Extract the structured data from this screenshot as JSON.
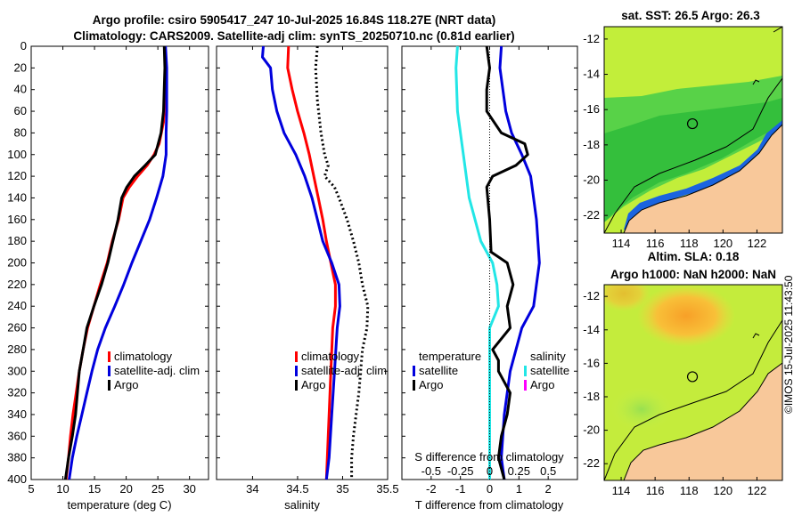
{
  "header": {
    "line1": "Argo profile: csiro 5905417_247 10-Jul-2025 16.84S 118.27E (NRT data)",
    "line2": "Climatology: CARS2009. Satellite-adj clim: synTS_20250710.nc (0.81d earlier)"
  },
  "colors": {
    "climatology": "#ff0000",
    "satellite": "#0000dd",
    "argo": "#000000",
    "satellite_salinity": "#22e6e6",
    "argo_salinity": "#ff00ff"
  },
  "chart_data": [
    {
      "type": "line",
      "panel": "temperature",
      "xlabel": "temperature (deg C)",
      "ylabel": "depth",
      "xlim": [
        5,
        33
      ],
      "ylim": [
        400,
        0
      ],
      "xticks": [
        5,
        10,
        15,
        20,
        25,
        30
      ],
      "yticks": [
        0,
        20,
        40,
        60,
        80,
        100,
        120,
        140,
        160,
        180,
        200,
        220,
        240,
        260,
        280,
        300,
        320,
        340,
        360,
        380,
        400
      ],
      "legend": [
        "climatology",
        "satellite-adj. clim",
        "Argo"
      ],
      "series": [
        {
          "name": "climatology",
          "style": "solid",
          "points": [
            [
              26.1,
              0
            ],
            [
              26.2,
              20
            ],
            [
              26.1,
              50
            ],
            [
              25.9,
              70
            ],
            [
              25.2,
              90
            ],
            [
              24.4,
              100
            ],
            [
              23.3,
              110
            ],
            [
              21.8,
              120
            ],
            [
              20.5,
              130
            ],
            [
              19.5,
              140
            ],
            [
              18.8,
              160
            ],
            [
              17.8,
              180
            ],
            [
              17.0,
              200
            ],
            [
              15.9,
              220
            ],
            [
              14.9,
              240
            ],
            [
              13.9,
              260
            ],
            [
              13.2,
              280
            ],
            [
              12.6,
              300
            ],
            [
              12.1,
              320
            ],
            [
              11.6,
              340
            ],
            [
              11.2,
              360
            ],
            [
              10.9,
              380
            ],
            [
              10.5,
              400
            ]
          ]
        },
        {
          "name": "satellite-adj. clim",
          "style": "solid",
          "points": [
            [
              26.2,
              0
            ],
            [
              26.4,
              20
            ],
            [
              26.4,
              60
            ],
            [
              26.3,
              80
            ],
            [
              26.3,
              100
            ],
            [
              25.8,
              120
            ],
            [
              24.8,
              140
            ],
            [
              23.7,
              160
            ],
            [
              22.3,
              180
            ],
            [
              20.9,
              200
            ],
            [
              19.6,
              220
            ],
            [
              18.2,
              240
            ],
            [
              16.7,
              260
            ],
            [
              15.5,
              280
            ],
            [
              14.6,
              300
            ],
            [
              13.8,
              320
            ],
            [
              13.0,
              340
            ],
            [
              12.2,
              360
            ],
            [
              11.5,
              380
            ],
            [
              11.0,
              400
            ]
          ]
        },
        {
          "name": "Argo",
          "style": "solid",
          "points": [
            [
              26.0,
              0
            ],
            [
              26.1,
              20
            ],
            [
              25.9,
              60
            ],
            [
              25.5,
              80
            ],
            [
              24.6,
              100
            ],
            [
              23.0,
              110
            ],
            [
              21.3,
              120
            ],
            [
              20.1,
              130
            ],
            [
              19.3,
              140
            ],
            [
              18.7,
              160
            ],
            [
              17.9,
              180
            ],
            [
              17.1,
              200
            ],
            [
              16.1,
              220
            ],
            [
              14.9,
              240
            ],
            [
              13.8,
              260
            ],
            [
              13.2,
              280
            ],
            [
              12.6,
              300
            ],
            [
              12.3,
              320
            ],
            [
              12.0,
              340
            ],
            [
              11.5,
              360
            ],
            [
              10.9,
              380
            ],
            [
              10.4,
              400
            ]
          ]
        }
      ]
    },
    {
      "type": "line",
      "panel": "salinity",
      "xlabel": "salinity",
      "xlim": [
        33.6,
        35.5
      ],
      "ylim": [
        400,
        0
      ],
      "xticks": [
        34,
        34.5,
        35,
        35.5
      ],
      "xticklabels": [
        "34",
        "34.5",
        "35",
        "35.5"
      ],
      "legend": [
        "climatology",
        "satellite-adj. clim",
        "Argo"
      ],
      "series": [
        {
          "name": "climatology",
          "style": "solid",
          "points": [
            [
              34.4,
              0
            ],
            [
              34.39,
              20
            ],
            [
              34.44,
              40
            ],
            [
              34.5,
              60
            ],
            [
              34.57,
              80
            ],
            [
              34.63,
              100
            ],
            [
              34.68,
              120
            ],
            [
              34.73,
              140
            ],
            [
              34.78,
              160
            ],
            [
              34.82,
              180
            ],
            [
              34.87,
              200
            ],
            [
              34.92,
              220
            ],
            [
              34.92,
              240
            ],
            [
              34.89,
              260
            ],
            [
              34.87,
              300
            ],
            [
              34.85,
              340
            ],
            [
              34.83,
              380
            ],
            [
              34.82,
              400
            ]
          ]
        },
        {
          "name": "satellite-adj. clim",
          "style": "solid",
          "points": [
            [
              34.12,
              0
            ],
            [
              34.11,
              10
            ],
            [
              34.2,
              20
            ],
            [
              34.22,
              40
            ],
            [
              34.27,
              60
            ],
            [
              34.35,
              80
            ],
            [
              34.48,
              100
            ],
            [
              34.58,
              120
            ],
            [
              34.66,
              140
            ],
            [
              34.72,
              160
            ],
            [
              34.78,
              180
            ],
            [
              34.88,
              200
            ],
            [
              34.96,
              220
            ],
            [
              34.97,
              240
            ],
            [
              34.94,
              260
            ],
            [
              34.91,
              300
            ],
            [
              34.88,
              340
            ],
            [
              34.85,
              380
            ],
            [
              34.82,
              400
            ]
          ]
        },
        {
          "name": "Argo",
          "style": "dotted",
          "points": [
            [
              34.72,
              0
            ],
            [
              34.7,
              20
            ],
            [
              34.72,
              50
            ],
            [
              34.76,
              80
            ],
            [
              34.8,
              100
            ],
            [
              34.84,
              110
            ],
            [
              34.8,
              120
            ],
            [
              34.91,
              130
            ],
            [
              34.96,
              140
            ],
            [
              35.05,
              160
            ],
            [
              35.12,
              180
            ],
            [
              35.18,
              200
            ],
            [
              35.22,
              220
            ],
            [
              35.28,
              240
            ],
            [
              35.27,
              260
            ],
            [
              35.22,
              280
            ],
            [
              35.2,
              300
            ],
            [
              35.18,
              320
            ],
            [
              35.15,
              340
            ],
            [
              35.12,
              360
            ],
            [
              35.1,
              380
            ],
            [
              35.1,
              400
            ]
          ]
        }
      ]
    },
    {
      "type": "line",
      "panel": "difference",
      "xlabel": "T difference from climatology",
      "xlabel_secondary": "S difference from climatology",
      "xlim": [
        -3,
        3
      ],
      "ylim": [
        400,
        0
      ],
      "xticks": [
        -2,
        -1,
        0,
        1,
        2
      ],
      "xticklabels": [
        "-2",
        "-1",
        "0",
        "1",
        "2"
      ],
      "secondary_ticklabels": [
        "-0.5",
        "-0.25",
        "0",
        "0.25",
        "0.5"
      ],
      "legend_temperature_title": "temperature",
      "legend_salinity_title": "salinity",
      "legend_temperature": [
        "satellite",
        "Argo"
      ],
      "legend_salinity": [
        "satellite",
        "Argo"
      ],
      "series": [
        {
          "name": "satellite (temperature)",
          "color_key": "satellite",
          "style": "solid",
          "points": [
            [
              0.4,
              0
            ],
            [
              0.35,
              20
            ],
            [
              0.45,
              40
            ],
            [
              0.55,
              60
            ],
            [
              0.75,
              80
            ],
            [
              1.1,
              100
            ],
            [
              1.4,
              120
            ],
            [
              1.6,
              160
            ],
            [
              1.7,
              200
            ],
            [
              1.6,
              220
            ],
            [
              1.5,
              240
            ],
            [
              1.1,
              260
            ],
            [
              0.7,
              300
            ],
            [
              0.5,
              340
            ],
            [
              0.4,
              380
            ],
            [
              0.5,
              400
            ]
          ]
        },
        {
          "name": "Argo (temperature)",
          "color_key": "argo",
          "style": "solid",
          "points": [
            [
              -0.1,
              0
            ],
            [
              0.0,
              20
            ],
            [
              -0.1,
              40
            ],
            [
              -0.1,
              60
            ],
            [
              0.4,
              80
            ],
            [
              1.2,
              90
            ],
            [
              1.3,
              100
            ],
            [
              0.9,
              110
            ],
            [
              0.1,
              120
            ],
            [
              -0.1,
              130
            ],
            [
              0.0,
              160
            ],
            [
              0.05,
              190
            ],
            [
              0.6,
              200
            ],
            [
              0.8,
              220
            ],
            [
              0.6,
              240
            ],
            [
              0.7,
              260
            ],
            [
              0.1,
              280
            ],
            [
              0.3,
              290
            ],
            [
              0.3,
              300
            ],
            [
              0.7,
              320
            ],
            [
              0.6,
              340
            ],
            [
              0.4,
              360
            ],
            [
              0.3,
              380
            ],
            [
              0.5,
              400
            ]
          ]
        },
        {
          "name": "satellite (salinity)",
          "color_key": "satellite_salinity",
          "style": "solid",
          "points": [
            [
              -1.1,
              0
            ],
            [
              -1.15,
              20
            ],
            [
              -1.1,
              60
            ],
            [
              -0.9,
              100
            ],
            [
              -0.7,
              140
            ],
            [
              -0.3,
              180
            ],
            [
              0.1,
              200
            ],
            [
              0.25,
              220
            ],
            [
              0.3,
              240
            ],
            [
              0.0,
              260
            ],
            [
              0.0,
              400
            ]
          ]
        },
        {
          "name": "zero line",
          "color_key": "argo",
          "style": "thin-dotted",
          "points": [
            [
              0,
              0
            ],
            [
              0,
              400
            ]
          ]
        }
      ]
    },
    {
      "type": "heatmap",
      "panel": "sst-map",
      "title": "sat. SST: 26.5 Argo: 26.3",
      "xticklabels": [
        "114",
        "116",
        "118",
        "120",
        "122"
      ],
      "yticklabels": [
        "-12",
        "-14",
        "-16",
        "-18",
        "-20",
        "-22"
      ],
      "xlim": [
        113,
        123.5
      ],
      "ylim": [
        -23,
        -11.3
      ],
      "marker": [
        118.2,
        -16.8
      ]
    },
    {
      "type": "heatmap",
      "panel": "sla-map",
      "title_line1": "Altim. SLA: 0.18",
      "title_line2": "Argo h1000: NaN h2000: NaN",
      "xticklabels": [
        "114",
        "116",
        "118",
        "120",
        "122"
      ],
      "yticklabels": [
        "-12",
        "-14",
        "-16",
        "-18",
        "-20",
        "-22"
      ],
      "xlim": [
        113,
        123.5
      ],
      "ylim": [
        -23,
        -11.3
      ],
      "marker": [
        118.2,
        -16.8
      ]
    }
  ],
  "copyright": "©IMOS 15-Jul-2025 11:43:50"
}
